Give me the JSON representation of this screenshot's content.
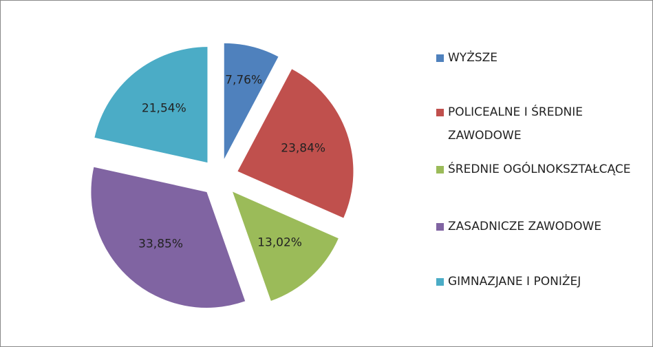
{
  "chart_data": {
    "type": "pie",
    "categories": [
      "WYŻSZE",
      "POLICEALNE I ŚREDNIE ZAWODOWE",
      "ŚREDNIE OGÓLNOKSZTAŁCĄCE",
      "ZASADNICZE ZAWODOWE",
      "GIMNAZJANE I PONIŻEJ"
    ],
    "values": [
      7.76,
      23.84,
      13.02,
      33.85,
      21.54
    ],
    "value_labels": [
      "7,76%",
      "23,84%",
      "13,02%",
      "33,85%",
      "21,54%"
    ],
    "colors": [
      "#4f81bd",
      "#c0504d",
      "#9bbb59",
      "#8064a2",
      "#4bacc6"
    ],
    "legend": "right"
  }
}
